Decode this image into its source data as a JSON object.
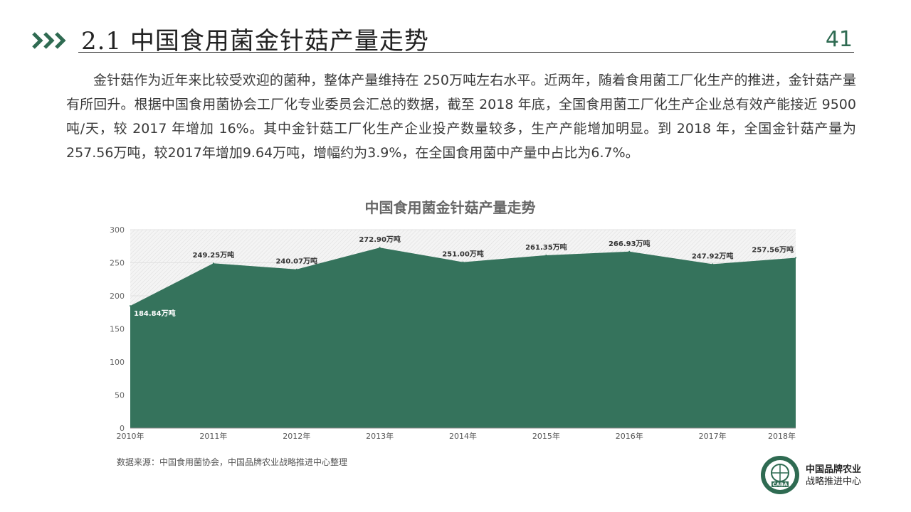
{
  "header": {
    "title": "2.1  中国食用菌金针菇产量走势",
    "page_number": "41"
  },
  "body": {
    "paragraph": "金针菇作为近年来比较受欢迎的菌种，整体产量维持在 250万吨左右水平。近两年，随着食用菌工厂化生产的推进，金针菇产量有所回升。根据中国食用菌协会工厂化专业委员会汇总的数据，截至 2018 年底，全国食用菌工厂化生产企业总有效产能接近 9500 吨/天，较 2017 年增加 16%。其中金针菇工厂化生产企业投产数量较多，生产产能增加明显。到 2018 年，全国金针菇产量为 257.56万吨，较2017年增加9.64万吨，增幅约为3.9%，在全国食用菌中产量中占比为6.7%。"
  },
  "chart_data": {
    "type": "area",
    "title": "中国食用菌金针菇产量走势",
    "categories": [
      "2010年",
      "2011年",
      "2012年",
      "2013年",
      "2014年",
      "2015年",
      "2016年",
      "2017年",
      "2018年"
    ],
    "values": [
      184.84,
      249.25,
      240.07,
      272.9,
      251.0,
      261.35,
      266.93,
      247.92,
      257.56
    ],
    "labels": [
      "184.84万吨",
      "249.25万吨",
      "240.07万吨",
      "272.90万吨",
      "251.00万吨",
      "261.35万吨",
      "266.93万吨",
      "247.92万吨",
      "257.56万吨"
    ],
    "yticks": [
      "0",
      "50",
      "100",
      "150",
      "200",
      "250",
      "300"
    ],
    "ylim": [
      0,
      300
    ],
    "grid": true,
    "legend": "none",
    "fill_color": "#35735c"
  },
  "footer": {
    "source": "数据来源：中国食用菌协会，中国品牌农业战略推进中心整理",
    "logo_line1": "中国品牌农业",
    "logo_line2": "战略推进中心",
    "logo_seal_text": "CABA"
  },
  "colors": {
    "accent": "#2f6b52",
    "area": "#35735c"
  }
}
